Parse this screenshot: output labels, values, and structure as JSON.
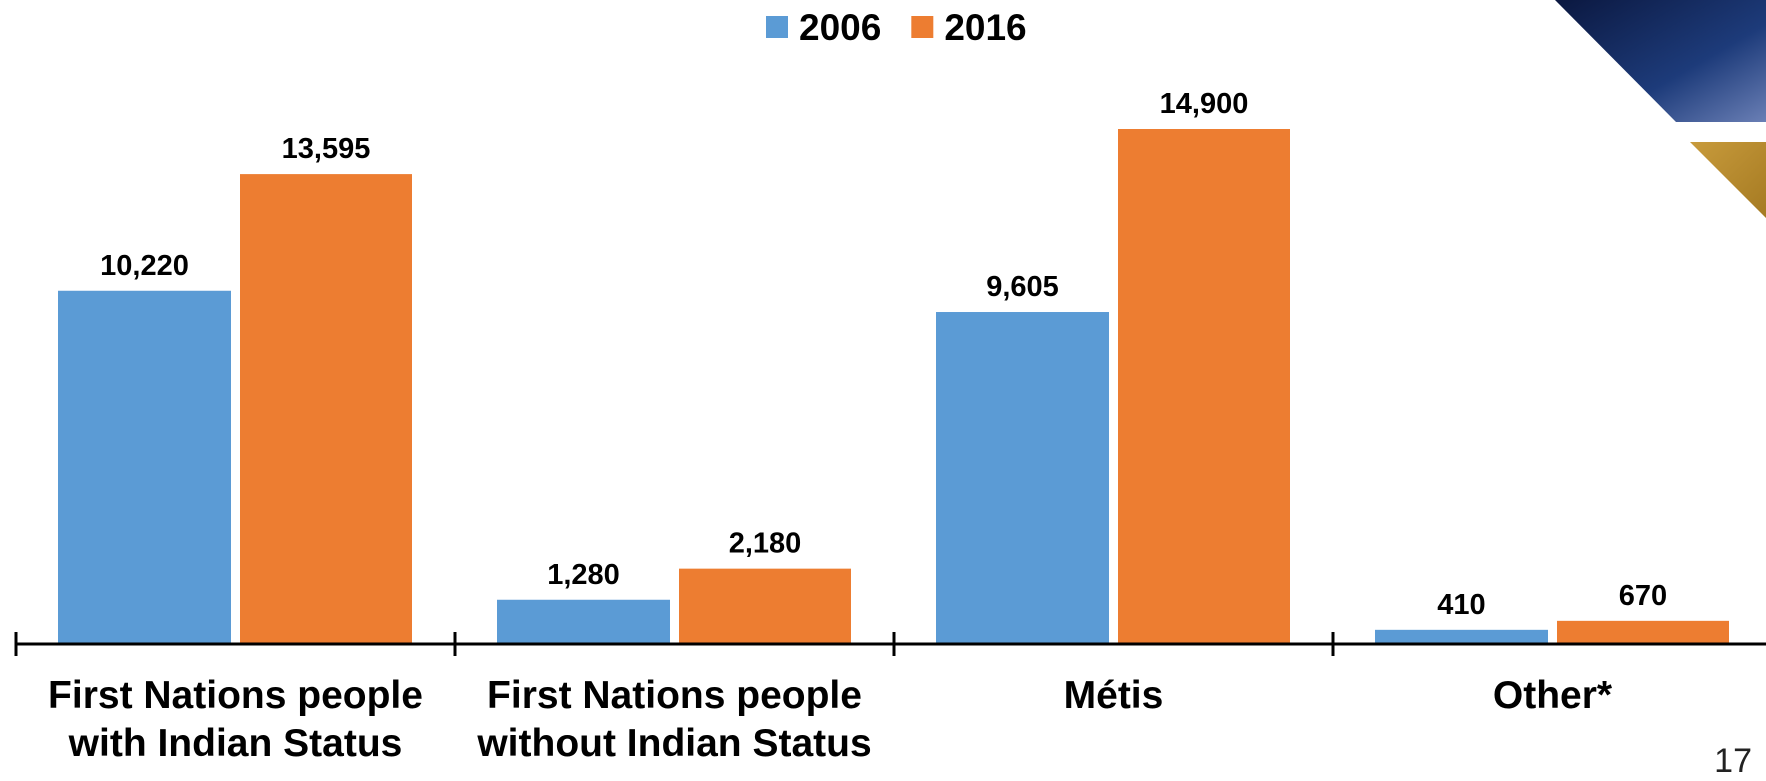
{
  "chart_data": {
    "type": "bar",
    "categories": [
      "First Nations people with Indian Status",
      "First Nations people without Indian Status",
      "Métis",
      "Other*"
    ],
    "series": [
      {
        "name": "2006",
        "color": "#5b9bd5",
        "values": [
          10220,
          1280,
          9605,
          410
        ],
        "value_labels": [
          "10,220",
          "1,280",
          "9,605",
          "410"
        ]
      },
      {
        "name": "2016",
        "color": "#ed7d31",
        "values": [
          13595,
          2180,
          14900,
          670
        ],
        "value_labels": [
          "13,595",
          "2,180",
          "14,900",
          "670"
        ]
      }
    ],
    "legend": "top"
  },
  "page_number": "17"
}
